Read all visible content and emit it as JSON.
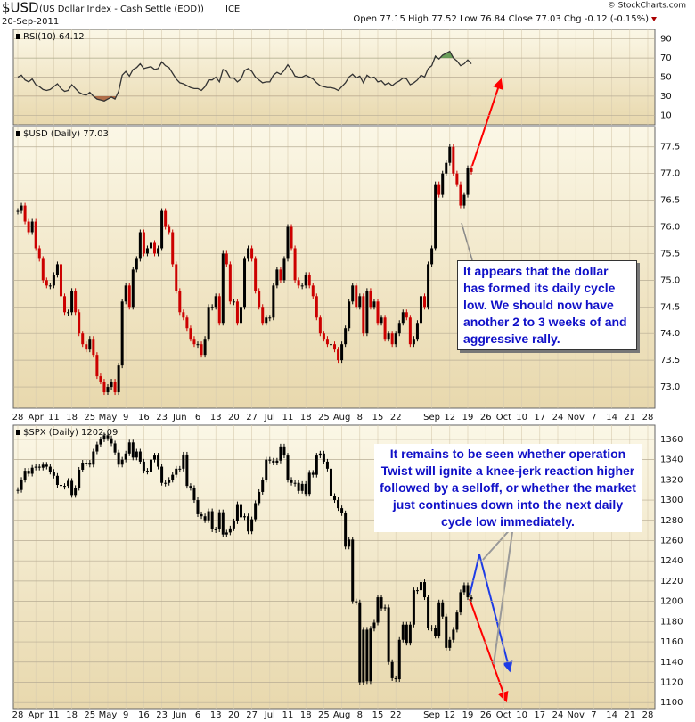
{
  "header": {
    "symbol": "$USD",
    "name": "(US Dollar Index - Cash Settle (EOD))",
    "exchange": "ICE",
    "date": "20-Sep-2011",
    "quote": "Open 77.15  High 77.52  Low 76.84  Close 77.03  Chg -0.12 (-0.15%)",
    "credit": "© StockCharts.com"
  },
  "x_axis": {
    "labels": [
      "28",
      "Apr",
      "11",
      "18",
      "25",
      "May",
      "9",
      "16",
      "23",
      "Jun",
      "6",
      "13",
      "20",
      "27",
      "Jul",
      "11",
      "18",
      "25",
      "Aug",
      "8",
      "15",
      "22",
      null,
      "Sep",
      "12",
      "19",
      "26",
      "Oct",
      "10",
      "17",
      "24",
      "Nov",
      "7",
      "14",
      "21",
      "28"
    ]
  },
  "annotations": [
    "It appears that the dollar has formed its daily cycle low. We should now have another 2 to 3 weeks of and aggressive rally.",
    "It remains to be seen whether operation Twist will ignite a knee-jerk reaction higher followed by a selloff, or whether the market just continues down into the next daily cycle low immediately."
  ],
  "chart_data": [
    {
      "type": "line",
      "title": "RSI(10) 64.12",
      "color": "#333333",
      "ylim": [
        0,
        100
      ],
      "yticks": [
        10,
        30,
        50,
        70,
        90
      ],
      "grid": true,
      "values": [
        50,
        52,
        47,
        45,
        48,
        42,
        40,
        37,
        36,
        37,
        40,
        43,
        38,
        35,
        36,
        42,
        38,
        34,
        32,
        31,
        34,
        30,
        27,
        26,
        25,
        27,
        29,
        27,
        35,
        52,
        56,
        51,
        58,
        60,
        64,
        59,
        60,
        61,
        58,
        59,
        66,
        62,
        60,
        54,
        48,
        44,
        43,
        41,
        39,
        38,
        38,
        36,
        40,
        47,
        47,
        50,
        45,
        58,
        56,
        49,
        49,
        45,
        48,
        57,
        59,
        56,
        50,
        47,
        44,
        45,
        45,
        52,
        55,
        53,
        57,
        63,
        58,
        51,
        50,
        50,
        52,
        50,
        48,
        44,
        41,
        40,
        39,
        39,
        38,
        36,
        40,
        44,
        50,
        53,
        49,
        51,
        44,
        52,
        49,
        50,
        45,
        46,
        42,
        44,
        41,
        44,
        46,
        49,
        48,
        42,
        44,
        47,
        52,
        50,
        59,
        62,
        72,
        69,
        73,
        75,
        77,
        70,
        67,
        62,
        64,
        68,
        64
      ]
    },
    {
      "type": "candlestick",
      "title": "$USD (Daily) 77.03",
      "color": "#000000",
      "down_color": "#cc0000",
      "ylim": [
        72.6,
        77.88
      ],
      "grid": true,
      "yticks": [
        {
          "value": 73,
          "label": "73.0"
        },
        73.5,
        {
          "value": 74,
          "label": "74.0"
        },
        74.5,
        {
          "value": 75,
          "label": "75.0"
        },
        75.5,
        {
          "value": 76,
          "label": "76.0"
        },
        76.5,
        {
          "value": 77,
          "label": "77.0"
        },
        77.5
      ],
      "values": [
        76.3,
        76.4,
        76.1,
        75.9,
        76.1,
        75.6,
        75.4,
        75.0,
        74.9,
        74.9,
        75.1,
        75.3,
        74.7,
        74.4,
        74.4,
        74.8,
        74.4,
        74.0,
        73.8,
        73.7,
        73.9,
        73.6,
        73.2,
        73.1,
        72.9,
        73.0,
        73.1,
        72.9,
        73.4,
        74.6,
        74.9,
        74.5,
        75.2,
        75.4,
        75.9,
        75.5,
        75.6,
        75.7,
        75.5,
        75.6,
        76.3,
        76.0,
        75.9,
        75.3,
        74.8,
        74.4,
        74.3,
        74.1,
        73.9,
        73.8,
        73.8,
        73.6,
        73.9,
        74.5,
        74.5,
        74.7,
        74.2,
        75.5,
        75.3,
        74.6,
        74.6,
        74.2,
        74.5,
        75.4,
        75.6,
        75.4,
        74.8,
        74.5,
        74.2,
        74.3,
        74.3,
        74.9,
        75.2,
        75.0,
        75.4,
        76.0,
        75.6,
        75.0,
        74.9,
        74.9,
        75.1,
        74.9,
        74.7,
        74.3,
        74.0,
        73.9,
        73.8,
        73.8,
        73.7,
        73.5,
        73.8,
        74.1,
        74.6,
        74.9,
        74.5,
        74.7,
        74.0,
        74.8,
        74.5,
        74.6,
        74.2,
        74.3,
        73.9,
        74.0,
        73.8,
        74.0,
        74.2,
        74.4,
        74.3,
        73.8,
        73.9,
        74.2,
        74.7,
        74.5,
        75.3,
        75.6,
        76.8,
        76.6,
        77.0,
        77.2,
        77.5,
        77.0,
        76.8,
        76.4,
        76.6,
        77.1,
        77.03
      ]
    },
    {
      "type": "candlestick",
      "title": "$SPX (Daily) 1202.09",
      "color": "#000000",
      "down_color": "#000000",
      "ylim": [
        1094,
        1374
      ],
      "grid": true,
      "yticks": [
        1100,
        1120,
        1140,
        1160,
        1180,
        1200,
        1220,
        1240,
        1260,
        1280,
        1300,
        1320,
        1340,
        1360
      ],
      "values": [
        1310,
        1320,
        1329,
        1326,
        1332,
        1333,
        1332,
        1335,
        1333,
        1328,
        1324,
        1315,
        1314,
        1314,
        1319,
        1305,
        1312,
        1330,
        1337,
        1337,
        1335,
        1348,
        1355,
        1360,
        1364,
        1361,
        1356,
        1347,
        1335,
        1340,
        1346,
        1357,
        1342,
        1348,
        1338,
        1329,
        1328,
        1340,
        1344,
        1333,
        1317,
        1317,
        1320,
        1325,
        1331,
        1331,
        1345,
        1314,
        1312,
        1300,
        1286,
        1284,
        1280,
        1289,
        1271,
        1271,
        1288,
        1266,
        1268,
        1272,
        1279,
        1296,
        1283,
        1284,
        1269,
        1281,
        1297,
        1308,
        1320,
        1340,
        1339,
        1337,
        1339,
        1353,
        1344,
        1320,
        1317,
        1317,
        1309,
        1316,
        1306,
        1327,
        1325,
        1344,
        1346,
        1338,
        1331,
        1304,
        1300,
        1292,
        1287,
        1254,
        1261,
        1200,
        1199,
        1120,
        1172,
        1121,
        1173,
        1179,
        1204,
        1193,
        1194,
        1140,
        1124,
        1123,
        1162,
        1177,
        1159,
        1177,
        1211,
        1211,
        1219,
        1204,
        1174,
        1174,
        1166,
        1199,
        1185,
        1154,
        1162,
        1172,
        1189,
        1209,
        1216,
        1204,
        1202.09
      ]
    }
  ]
}
